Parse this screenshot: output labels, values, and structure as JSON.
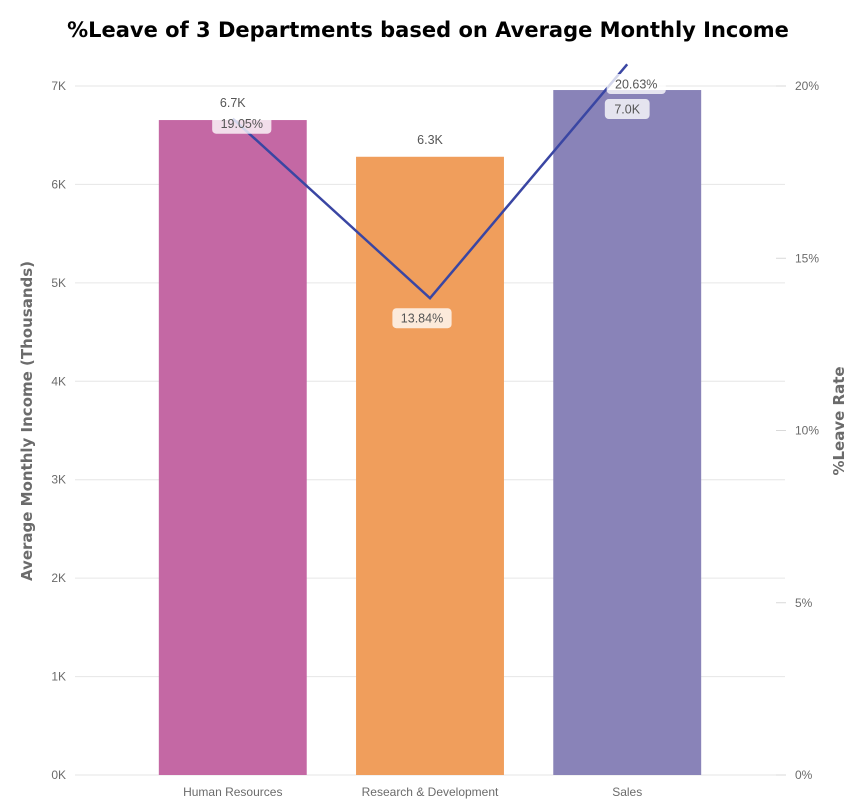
{
  "chart_data": {
    "type": "bar",
    "title": "%Leave of 3 Departments based on Average Monthly Income",
    "categories": [
      "Human Resources",
      "Research & Development",
      "Sales"
    ],
    "series": [
      {
        "type": "bar",
        "axis": "left",
        "values": [
          6.654,
          6.281,
          6.959
        ],
        "labels": [
          "6.7K",
          "6.3K",
          "7.0K"
        ],
        "colors": [
          "#C468A4",
          "#F09E5C",
          "#8983B8"
        ]
      },
      {
        "type": "line",
        "axis": "right",
        "values": [
          19.05,
          13.84,
          20.63
        ],
        "labels": [
          "19.05%",
          "13.84%",
          "20.63%"
        ],
        "color": "#3A46A3"
      }
    ],
    "ylabel": "Average Monthly Income (Thousands)",
    "y2label": "%Leave Rate",
    "ylim": [
      0,
      7
    ],
    "y2lim": [
      0,
      20
    ],
    "yticks": [
      "0K",
      "1K",
      "2K",
      "3K",
      "4K",
      "5K",
      "6K",
      "7K"
    ],
    "y2ticks": [
      "0%",
      "5%",
      "10%",
      "15%",
      "20%"
    ],
    "grid": true,
    "legend": "none"
  }
}
